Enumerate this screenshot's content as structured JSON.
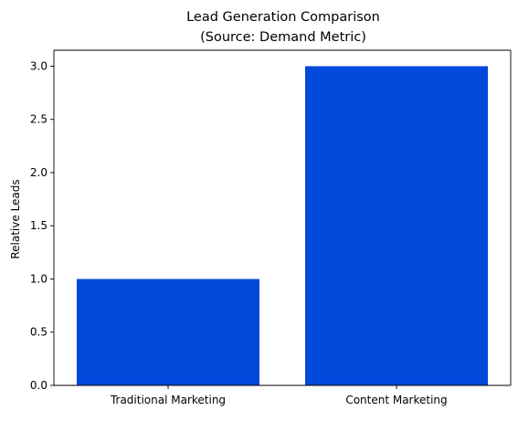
{
  "chart_data": {
    "type": "bar",
    "title": "Lead Generation Comparison",
    "subtitle": "(Source: Demand Metric)",
    "xlabel": "",
    "ylabel": "Relative Leads",
    "categories": [
      "Traditional Marketing",
      "Content Marketing"
    ],
    "values": [
      1,
      3
    ],
    "ylim": [
      0,
      3.15
    ],
    "yticks": [
      "0.0",
      "0.5",
      "1.0",
      "1.5",
      "2.0",
      "2.5",
      "3.0"
    ],
    "grid": false,
    "bar_color": "#0349dc"
  }
}
